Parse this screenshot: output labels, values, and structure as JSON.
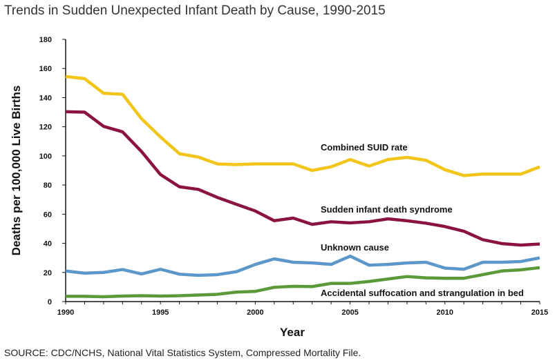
{
  "title": "Trends in Sudden Unexpected Infant Death by Cause, 1990-2015",
  "source": "SOURCE: CDC/NCHS, National Vital Statistics System, Compressed Mortality File.",
  "chart_data": {
    "type": "line",
    "title": "Trends in Sudden Unexpected Infant Death by Cause, 1990-2015",
    "xlabel": "Year",
    "ylabel": "Deaths per 100,000 Live Births",
    "xlim": [
      1990,
      2015
    ],
    "ylim": [
      0,
      180
    ],
    "x_ticks": [
      1990,
      1995,
      2000,
      2005,
      2010,
      2015
    ],
    "y_ticks": [
      0,
      20,
      40,
      60,
      80,
      100,
      120,
      140,
      160,
      180
    ],
    "grid": false,
    "x": [
      1990,
      1991,
      1992,
      1993,
      1994,
      1995,
      1996,
      1997,
      1998,
      1999,
      2000,
      2001,
      2002,
      2003,
      2004,
      2005,
      2006,
      2007,
      2008,
      2009,
      2010,
      2011,
      2012,
      2013,
      2014,
      2015
    ],
    "series": [
      {
        "name": "Combined SUID rate",
        "color": "#f2c51b",
        "values": [
          154.5,
          153,
          143,
          142.3,
          125.5,
          113,
          101.5,
          99.2,
          94.5,
          94,
          94.5,
          94.5,
          94.5,
          90,
          92.5,
          97.5,
          93,
          97.5,
          99,
          97,
          90.5,
          86.5,
          87.5,
          87.5,
          87.5,
          92.5
        ]
      },
      {
        "name": "Sudden infant death syndrome",
        "color": "#8b1341",
        "values": [
          130.3,
          130,
          120.3,
          116.5,
          103,
          87.2,
          78.8,
          77,
          71.5,
          66.8,
          62.2,
          55.5,
          57.3,
          53,
          54.8,
          54,
          54.8,
          56.8,
          55.5,
          53.8,
          51.5,
          48.3,
          42.5,
          39.8,
          38.8,
          39.5
        ]
      },
      {
        "name": "Unknown cause",
        "color": "#5b97c9",
        "values": [
          21,
          19.5,
          20,
          22,
          19,
          22.2,
          18.8,
          18,
          18.5,
          20.5,
          25.5,
          29.3,
          27,
          26.5,
          25.5,
          31.2,
          25,
          25.5,
          26.5,
          27,
          23,
          22.2,
          27,
          27,
          27.5,
          30
        ]
      },
      {
        "name": "Accidental suffocation and strangulation in bed",
        "color": "#5b9a3a",
        "values": [
          3.6,
          3.6,
          3.3,
          3.8,
          4,
          3.8,
          4,
          4.5,
          5,
          6.5,
          7,
          9.8,
          10.5,
          10.3,
          12.5,
          12.5,
          13.8,
          15.5,
          17.2,
          16.3,
          16,
          16,
          18.5,
          21,
          21.8,
          23.3
        ]
      }
    ]
  }
}
